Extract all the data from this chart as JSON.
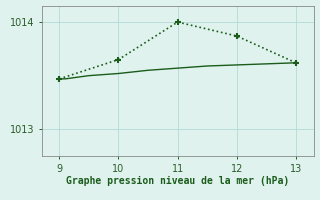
{
  "bg_color": "#dff2ee",
  "line1_x": [
    9,
    10,
    11,
    12,
    13
  ],
  "line1_y": [
    1013.47,
    1013.65,
    1014.0,
    1013.87,
    1013.62
  ],
  "line2_x": [
    9,
    9.1,
    9.5,
    10.0,
    10.5,
    11.0,
    11.5,
    12.0,
    12.5,
    13.0
  ],
  "line2_y": [
    1013.47,
    1013.47,
    1013.5,
    1013.52,
    1013.55,
    1013.57,
    1013.59,
    1013.6,
    1013.61,
    1013.62
  ],
  "line_color": "#1a5c1a",
  "marker": "+",
  "markersize": 5,
  "markeredgewidth": 1.5,
  "xlabel": "Graphe pression niveau de la mer (hPa)",
  "xlabel_fontsize": 7,
  "xticks": [
    9,
    10,
    11,
    12,
    13
  ],
  "yticks": [
    1013,
    1014
  ],
  "ylim": [
    1012.75,
    1014.15
  ],
  "xlim": [
    8.7,
    13.3
  ],
  "grid_color": "#b8ddd8",
  "tick_color": "#2a5c2a",
  "tick_fontsize": 7,
  "figsize": [
    3.2,
    2.0
  ],
  "dpi": 100
}
